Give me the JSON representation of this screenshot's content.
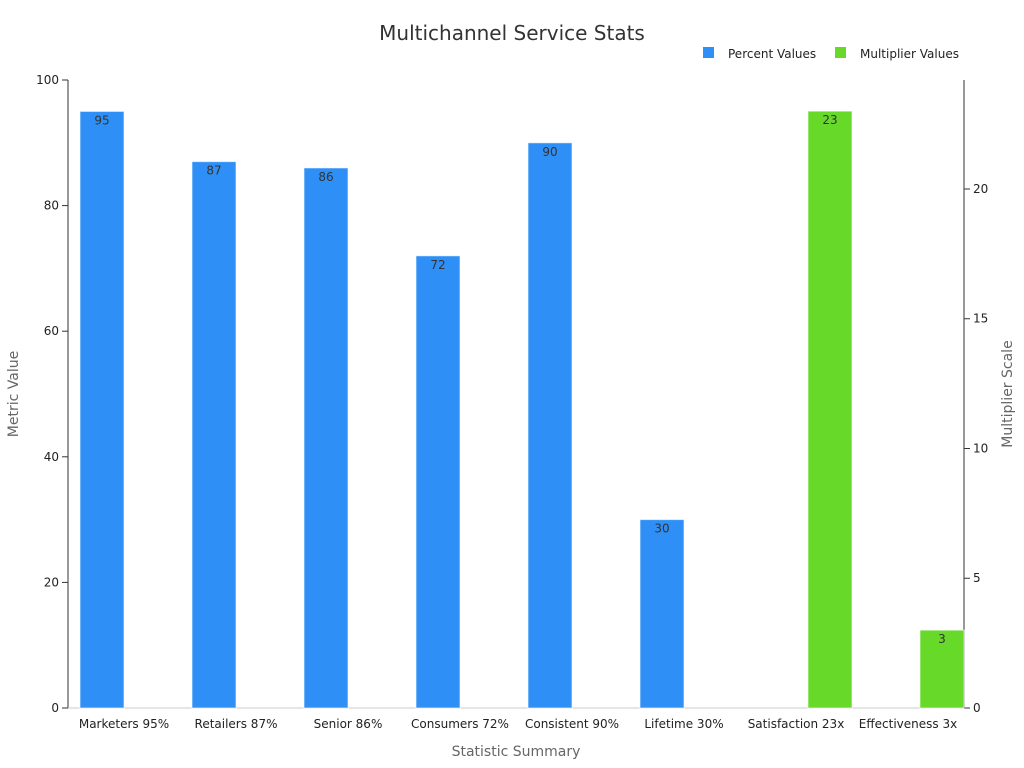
{
  "chart_data": {
    "type": "bar",
    "title": "Multichannel Service Stats",
    "xlabel": "Statistic Summary",
    "ylabel": "Metric Value",
    "y2label": "Multiplier Scale",
    "ylim": [
      0,
      100
    ],
    "y2lim": [
      0,
      24.2
    ],
    "yticks": [
      0,
      20,
      40,
      60,
      80,
      100
    ],
    "y2ticks": [
      0,
      5,
      10,
      15,
      20
    ],
    "categories": [
      "Marketers 95%",
      "Retailers 87%",
      "Senior 86%",
      "Consumers 72%",
      "Consistent 90%",
      "Lifetime 30%",
      "Satisfaction 23x",
      "Effectiveness 3x"
    ],
    "series": [
      {
        "name": "Percent Values",
        "color": "#2e90f7",
        "axis": "left",
        "values": [
          95,
          87,
          86,
          72,
          90,
          30,
          null,
          null
        ]
      },
      {
        "name": "Multiplier Values",
        "color": "#66d929",
        "axis": "right",
        "values": [
          null,
          null,
          null,
          null,
          null,
          null,
          23,
          3
        ]
      }
    ],
    "legend_position": "top-right",
    "grid": false
  }
}
